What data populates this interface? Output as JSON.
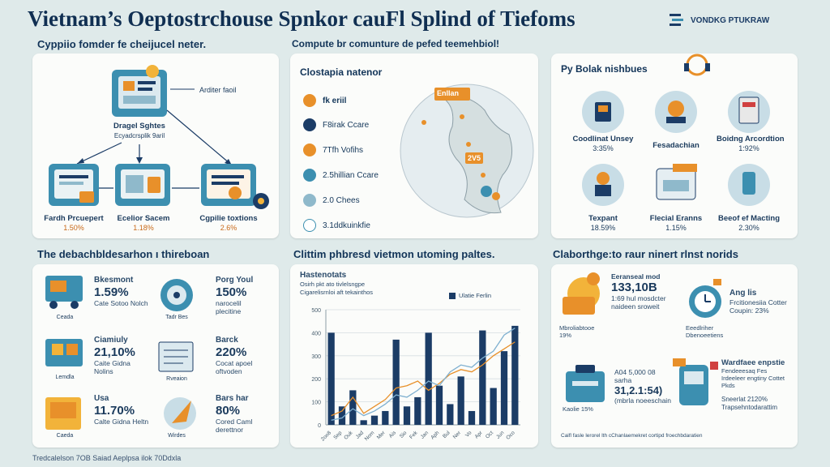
{
  "title": "Vietnam’s Oeptostrchouse Spnkor cauFl Splind of Tiefoms",
  "brand": {
    "name": "VONDKG PTUKRAW"
  },
  "section1": {
    "title": "Cyppiio fomder fe cheijucel neter.",
    "annotation": "Arditer faoil",
    "center_label": "Dragel Sghtes",
    "center_sub": "Ecyadcrsplik 9aril",
    "items": [
      {
        "label": "Fardh Prcuepert",
        "value": "1.50%"
      },
      {
        "label": "Ecelior Sacem",
        "value": "1.18%"
      },
      {
        "label": "Cgpilie toxtions",
        "value": "2.6%"
      }
    ]
  },
  "section2": {
    "title": "Compute br comunture de pefed teemehbiol!",
    "subtitle": "Clostapia natenor",
    "legend": [
      {
        "label": "fk eriil"
      },
      {
        "label": "F8irak Ccare"
      },
      {
        "label": "7Tfh Vofihs"
      },
      {
        "label": "2.5hillian Ccare"
      },
      {
        "label": "2.0 Chees"
      },
      {
        "label": "3.1ddkuinkfie"
      }
    ],
    "map_tags": [
      "Enllan",
      "2V5"
    ]
  },
  "section3": {
    "title": "Py Bolak nishbues",
    "items": [
      {
        "label": "Coodlinat Unsey",
        "value": "3:35%"
      },
      {
        "label": "Fesadachian",
        "value": ""
      },
      {
        "label": "Boidng Arcordtion",
        "value": "1:92%"
      },
      {
        "label": "Texpant",
        "value": "18.59%"
      },
      {
        "label": "Flecial Eranns",
        "value": "1.15%"
      },
      {
        "label": "Beeof ef Macting",
        "value": "2.30%"
      }
    ]
  },
  "section4": {
    "title": "The debachbldesarhon ı thireboan",
    "items": [
      {
        "name": "Bkesmont",
        "value": "1.59%",
        "desc": "Cate Sotoo Nolch",
        "icon_label": "Ceada"
      },
      {
        "name": "Porg Youl",
        "value": "150%",
        "desc": "narocelil plecitine",
        "icon_label": "Tadr Bes"
      },
      {
        "name": "Ciamiuly",
        "value": "21,10%",
        "desc": "Caite Gidna Nolins",
        "icon_label": "Lemdla"
      },
      {
        "name": "Barck",
        "value": "220%",
        "desc": "Cocat apoel oftvoden",
        "icon_label": "Rveaion"
      },
      {
        "name": "Usa",
        "value": "11.70%",
        "desc": "Calte Gidna Heltn",
        "icon_label": "Caeda"
      },
      {
        "name": "Bars har",
        "value": "80%",
        "desc": "Cored Caml derettnor",
        "icon_label": "Wirdes"
      }
    ]
  },
  "section5": {
    "title": "Clittim phbresd vietmon utoming paltes.",
    "chart_data": {
      "type": "bar",
      "title": "Hastenotats",
      "subtitle_lines": [
        "Osirh pkt ato tivlelsngpe",
        "Cigarelisrnloi aft tekainthos"
      ],
      "legend": [
        "Ulatie Ferlin"
      ],
      "ylim": [
        0,
        500
      ],
      "yticks": [
        "500",
        "400",
        "300",
        "200",
        "100",
        "0"
      ],
      "categories": [
        "2oo8",
        "Sep",
        "Ouk",
        "Jad",
        "Nom",
        "Mer",
        "Ais",
        "Sio",
        "Fek",
        "Jan",
        "Aph",
        "Bul",
        "Ner",
        "Vo",
        "Apr",
        "Oct",
        "Jun",
        "Oco"
      ],
      "series": [
        {
          "name": "Ulatie Ferlin",
          "values": [
            400,
            80,
            150,
            20,
            40,
            60,
            370,
            80,
            120,
            400,
            170,
            90,
            210,
            60,
            410,
            160,
            320,
            430
          ]
        }
      ],
      "line_series": [
        {
          "name": "trend-a",
          "values": [
            40,
            60,
            120,
            50,
            80,
            110,
            160,
            170,
            190,
            150,
            180,
            220,
            240,
            230,
            260,
            300,
            330,
            360
          ]
        },
        {
          "name": "trend-b",
          "values": [
            20,
            30,
            70,
            40,
            60,
            90,
            130,
            120,
            150,
            190,
            170,
            230,
            260,
            250,
            290,
            320,
            390,
            420
          ]
        }
      ]
    }
  },
  "section6": {
    "title": "Claborthge:to raur ninert rlnst norids",
    "items": [
      {
        "heading": "Eeranseal mod",
        "value": "133,10B",
        "desc": "1:69 hul mosdcter naideen sroweit",
        "badge": "Mbroliabtooe 19%"
      },
      {
        "heading": "Ang lis",
        "value": "",
        "desc": "Frcitionesiia Cotter Coupin: 23%",
        "badge": "Eeedlriher Dbenoeetiens"
      },
      {
        "heading": "A04 5,000 08 sarha",
        "value": "31,2.1:54)",
        "desc": "(mbrla noeeschain",
        "badge": "Kaolie 15%"
      },
      {
        "heading": "Wardfaee enpstie",
        "value": "",
        "desc": "Fendeeesaq Fes Irdeeleer engtiny Cottet Pkds",
        "badge": "Sneerlat 2120% Trapsehntodarattim"
      }
    ],
    "footnote": "Caifl fasle lerorel lth cChanlaemekret cortipd froechbdaratien"
  },
  "footer": "Tredcalelson 7OB Saiad Aeplpsa ilok 70Ddxla",
  "colors": {
    "navy": "#1b3c66",
    "orange": "#e8902a",
    "teal": "#3c8fb0",
    "bg": "#dfeaea"
  }
}
